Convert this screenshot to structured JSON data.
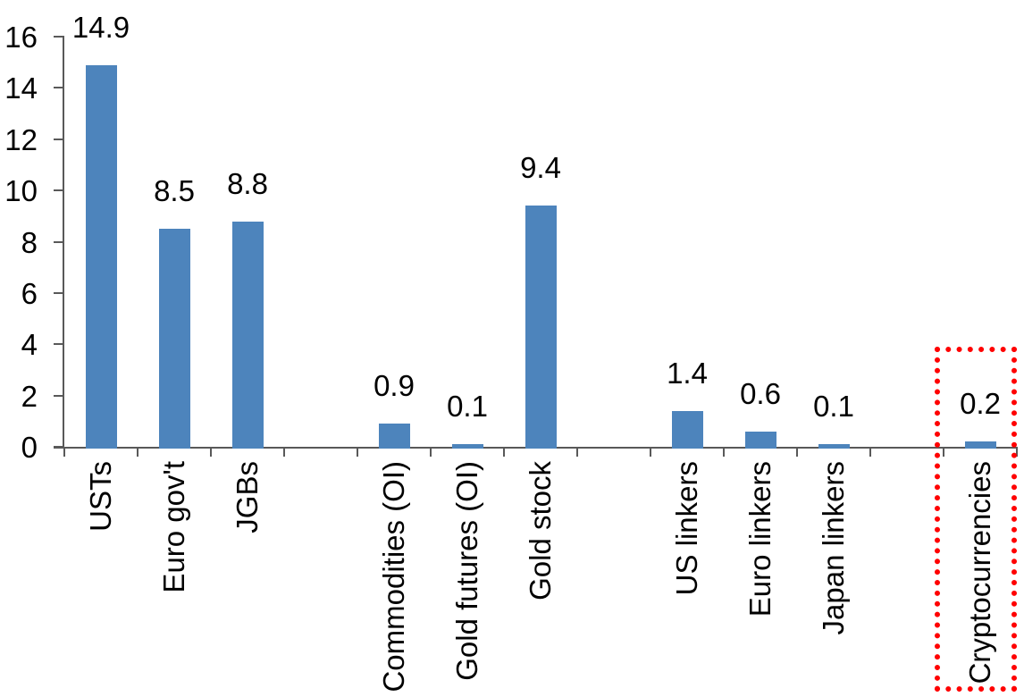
{
  "chart_data": {
    "type": "bar",
    "title": "",
    "xlabel": "",
    "ylabel": "",
    "categories": [
      "USTs",
      "Euro gov't",
      "JGBs",
      "Commodities (OI)",
      "Gold futures (OI)",
      "Gold stock",
      "US linkers",
      "Euro linkers",
      "Japan linkers",
      "Cryptocurrencies"
    ],
    "values": [
      14.9,
      8.5,
      8.8,
      0.9,
      0.1,
      9.4,
      1.4,
      0.6,
      0.1,
      0.2
    ],
    "value_labels": [
      "14.9",
      "8.5",
      "8.8",
      "0.9",
      "0.1",
      "9.4",
      "1.4",
      "0.6",
      "0.1",
      "0.2"
    ],
    "slot_indices": [
      0,
      1,
      2,
      4,
      5,
      6,
      8,
      9,
      10,
      12
    ],
    "total_slots": 13,
    "ylim": [
      0,
      16
    ],
    "yticks": [
      0,
      2,
      4,
      6,
      8,
      10,
      12,
      14,
      16
    ],
    "ytick_labels": [
      "0",
      "2",
      "4",
      "6",
      "8",
      "10",
      "12",
      "14",
      "16"
    ],
    "grid": false,
    "legend_position": "none",
    "category_label_rotation_deg": 90,
    "bar_color": "#4D84BC",
    "axis_color": "#595959",
    "text_color": "#000000",
    "highlight": {
      "target_category": "Cryptocurrencies",
      "shape": "dotted-rectangle",
      "color": "#FF0000"
    }
  }
}
